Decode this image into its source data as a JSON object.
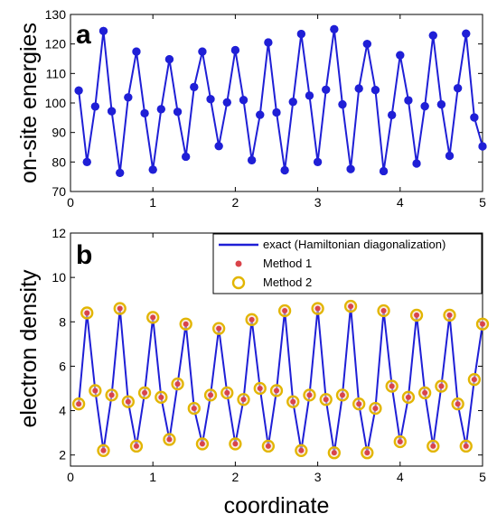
{
  "chart_data": [
    {
      "type": "line",
      "panel_label": "a",
      "ylabel": "on-site energies",
      "xlabel": "",
      "xlim": [
        0,
        5
      ],
      "ylim": [
        70,
        130
      ],
      "x_ticks": [
        0,
        1,
        2,
        3,
        4,
        5
      ],
      "y_ticks": [
        70,
        80,
        90,
        100,
        110,
        120,
        130
      ],
      "colors": {
        "line": "#1f1fd6",
        "marker": "#1f1fd6"
      },
      "series": [
        {
          "x": [
            0.1,
            0.2,
            0.3,
            0.4,
            0.5,
            0.6,
            0.7,
            0.8,
            0.9,
            1.0,
            1.1,
            1.2,
            1.3,
            1.4,
            1.5,
            1.6,
            1.7,
            1.8,
            1.9,
            2.0,
            2.1,
            2.2,
            2.3,
            2.4,
            2.5,
            2.6,
            2.7,
            2.8,
            2.9,
            3.0,
            3.1,
            3.2,
            3.3,
            3.4,
            3.5,
            3.6,
            3.7,
            3.8,
            3.9,
            4.0,
            4.1,
            4.2,
            4.3,
            4.4,
            4.5,
            4.6,
            4.7,
            4.8,
            4.9,
            5.0
          ],
          "values": [
            104.2,
            80.0,
            98.8,
            124.4,
            97.2,
            76.3,
            101.9,
            117.4,
            96.5,
            77.4,
            97.9,
            114.8,
            97.0,
            81.8,
            105.4,
            117.4,
            101.3,
            85.4,
            100.2,
            117.9,
            101.0,
            80.6,
            96.0,
            120.5,
            96.8,
            77.2,
            100.4,
            123.4,
            102.5,
            80.0,
            104.5,
            125.0,
            99.5,
            77.6,
            104.9,
            120.0,
            104.4,
            76.9,
            95.9,
            116.2,
            100.9,
            79.5,
            98.9,
            122.9,
            99.5,
            82.1,
            105.0,
            123.5,
            95.1,
            85.3
          ]
        }
      ]
    },
    {
      "type": "line",
      "panel_label": "b",
      "ylabel": "electron density",
      "xlabel": "coordinate",
      "xlim": [
        0,
        5
      ],
      "ylim": [
        1.5,
        12
      ],
      "x_ticks": [
        0,
        1,
        2,
        3,
        4,
        5
      ],
      "y_ticks": [
        2,
        4,
        6,
        8,
        10,
        12
      ],
      "legend_position": "top-right",
      "colors": {
        "exact": "#1f1fd6",
        "method1": "#d9434a",
        "method2": "#e2b500"
      },
      "series": [
        {
          "name": "exact (Hamiltonian diagonalization)",
          "style": "line",
          "x": [
            0.1,
            0.2,
            0.3,
            0.4,
            0.5,
            0.6,
            0.7,
            0.8,
            0.9,
            1.0,
            1.1,
            1.2,
            1.3,
            1.4,
            1.5,
            1.6,
            1.7,
            1.8,
            1.9,
            2.0,
            2.1,
            2.2,
            2.3,
            2.4,
            2.5,
            2.6,
            2.7,
            2.8,
            2.9,
            3.0,
            3.1,
            3.2,
            3.3,
            3.4,
            3.5,
            3.6,
            3.7,
            3.8,
            3.9,
            4.0,
            4.1,
            4.2,
            4.3,
            4.4,
            4.5,
            4.6,
            4.7,
            4.8,
            4.9,
            5.0
          ],
          "values": [
            4.3,
            8.4,
            4.9,
            2.2,
            4.7,
            8.6,
            4.4,
            2.4,
            4.8,
            8.2,
            4.6,
            2.7,
            5.2,
            7.9,
            4.1,
            2.5,
            4.7,
            7.7,
            4.8,
            2.5,
            4.5,
            8.1,
            5.0,
            2.4,
            4.9,
            8.5,
            4.4,
            2.2,
            4.7,
            8.6,
            4.5,
            2.1,
            4.7,
            8.7,
            4.3,
            2.1,
            4.1,
            8.5,
            5.1,
            2.6,
            4.6,
            8.3,
            4.8,
            2.4,
            5.1,
            8.3,
            4.3,
            2.4,
            5.4,
            7.9
          ]
        },
        {
          "name": "Method 1",
          "style": "marker",
          "x": [
            0.1,
            0.2,
            0.3,
            0.4,
            0.5,
            0.6,
            0.7,
            0.8,
            0.9,
            1.0,
            1.1,
            1.2,
            1.3,
            1.4,
            1.5,
            1.6,
            1.7,
            1.8,
            1.9,
            2.0,
            2.1,
            2.2,
            2.3,
            2.4,
            2.5,
            2.6,
            2.7,
            2.8,
            2.9,
            3.0,
            3.1,
            3.2,
            3.3,
            3.4,
            3.5,
            3.6,
            3.7,
            3.8,
            3.9,
            4.0,
            4.1,
            4.2,
            4.3,
            4.4,
            4.5,
            4.6,
            4.7,
            4.8,
            4.9,
            5.0
          ],
          "values": [
            4.3,
            8.4,
            4.9,
            2.2,
            4.7,
            8.6,
            4.4,
            2.4,
            4.8,
            8.2,
            4.6,
            2.7,
            5.2,
            7.9,
            4.1,
            2.5,
            4.7,
            7.7,
            4.8,
            2.5,
            4.5,
            8.1,
            5.0,
            2.4,
            4.9,
            8.5,
            4.4,
            2.2,
            4.7,
            8.6,
            4.5,
            2.1,
            4.7,
            8.7,
            4.3,
            2.1,
            4.1,
            8.5,
            5.1,
            2.6,
            4.6,
            8.3,
            4.8,
            2.4,
            5.1,
            8.3,
            4.3,
            2.4,
            5.4,
            7.9
          ]
        },
        {
          "name": "Method 2",
          "style": "open-circle",
          "x": [
            0.1,
            0.2,
            0.3,
            0.4,
            0.5,
            0.6,
            0.7,
            0.8,
            0.9,
            1.0,
            1.1,
            1.2,
            1.3,
            1.4,
            1.5,
            1.6,
            1.7,
            1.8,
            1.9,
            2.0,
            2.1,
            2.2,
            2.3,
            2.4,
            2.5,
            2.6,
            2.7,
            2.8,
            2.9,
            3.0,
            3.1,
            3.2,
            3.3,
            3.4,
            3.5,
            3.6,
            3.7,
            3.8,
            3.9,
            4.0,
            4.1,
            4.2,
            4.3,
            4.4,
            4.5,
            4.6,
            4.7,
            4.8,
            4.9,
            5.0
          ],
          "values": [
            4.3,
            8.4,
            4.9,
            2.2,
            4.7,
            8.6,
            4.4,
            2.4,
            4.8,
            8.2,
            4.6,
            2.7,
            5.2,
            7.9,
            4.1,
            2.5,
            4.7,
            7.7,
            4.8,
            2.5,
            4.5,
            8.1,
            5.0,
            2.4,
            4.9,
            8.5,
            4.4,
            2.2,
            4.7,
            8.6,
            4.5,
            2.1,
            4.7,
            8.7,
            4.3,
            2.1,
            4.1,
            8.5,
            5.1,
            2.6,
            4.6,
            8.3,
            4.8,
            2.4,
            5.1,
            8.3,
            4.3,
            2.4,
            5.4,
            7.9
          ]
        }
      ]
    }
  ]
}
